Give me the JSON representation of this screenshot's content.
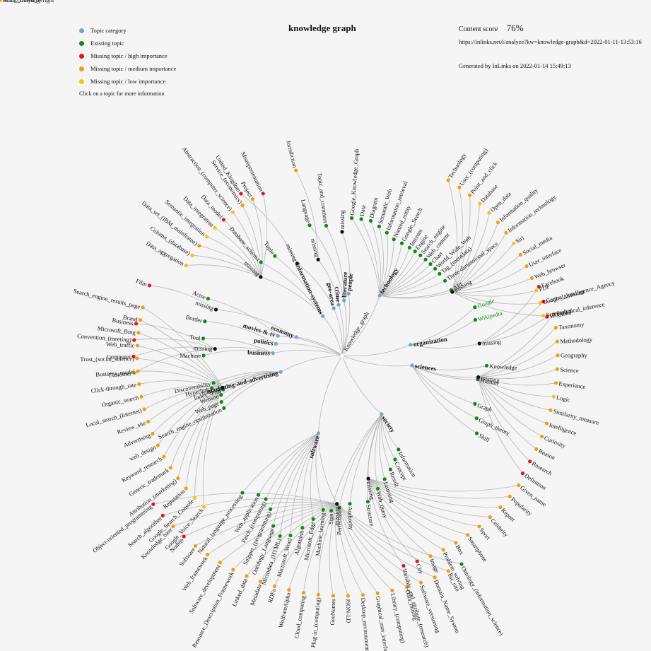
{
  "title": "knowledge graph",
  "score": {
    "label": "Content score",
    "value": "76%"
  },
  "url": "https://inlinks.net/i/analyze?kw=knowledge-graph&d=2022-01-11-13:53:16",
  "generated": "Generated by InLinks on 2022-01-14 15:49:13",
  "legend": {
    "items": [
      {
        "label": "Topic category",
        "color": "#6fa6cf"
      },
      {
        "label": "Existing topic",
        "color": "#118811"
      },
      {
        "label": "Missing topic / high importance",
        "color": "#e3161b"
      },
      {
        "label": "Missing topic / medium importance",
        "color": "#f29c11"
      },
      {
        "label": "Missing topic / low importance",
        "color": "#f6c21f"
      }
    ],
    "hint": "Click on a topic for more information"
  },
  "colors": {
    "cat": "#6fa6cf",
    "exist": "#118811",
    "high": "#e3161b",
    "med": "#f29c11",
    "low": "#f6c21f",
    "black": "#111111",
    "edge": "#b5b5b5"
  },
  "root": {
    "label": "Knowledge_graph"
  },
  "groups": [
    {
      "cat": "people",
      "sub": "missing",
      "sub_leaves": [
        [
          "Matt_Groening",
          "med"
        ],
        [
          "Frank_Lloyd_Wright",
          "med"
        ]
      ]
    },
    {
      "cat": "literature",
      "leaves": [
        [
          "Topic_and_comment",
          "exist"
        ],
        [
          "Language",
          "exist"
        ]
      ]
    },
    {
      "cat": "crime",
      "sub": "missing",
      "sub_leaves": [
        [
          "Jurisdiction",
          "med"
        ]
      ]
    },
    {
      "cat": "geo-area",
      "sub": "missing",
      "sub_leaves": [
        [
          "United_Kingdom",
          "high"
        ]
      ]
    },
    {
      "cat": "information-systems",
      "leaves": [
        [
          "Tuple",
          "exist"
        ],
        [
          "Database_schema",
          "exist"
        ]
      ],
      "sub": "missing",
      "sub_leaves": [
        [
          "Data_aggregation",
          "low"
        ],
        [
          "Column_(database)",
          "low"
        ],
        [
          "Data_set_(IBM_mainframe)",
          "med"
        ],
        [
          "Semantic_integration",
          "low"
        ],
        [
          "Data_integration",
          "low"
        ],
        [
          "Data_model",
          "high"
        ],
        [
          "Abstraction_(computer_science)",
          "low"
        ],
        [
          "Service_(economics)",
          "med"
        ],
        [
          "Project",
          "med"
        ],
        [
          "Misrepresentation",
          "high"
        ]
      ]
    },
    {
      "cat": "economy",
      "sub": "missing",
      "sub_leaves": [
        [
          "Film",
          "high"
        ]
      ]
    },
    {
      "cat": "movies-&-tv",
      "leaves": [
        [
          "Actor",
          "exist"
        ]
      ]
    },
    {
      "cat": "politics",
      "leaves": [
        [
          "Border",
          "exist"
        ]
      ]
    },
    {
      "cat": "business",
      "leaves": [
        [
          "Tool",
          "exist"
        ],
        [
          "Machine",
          "exist"
        ]
      ],
      "sub": "missing",
      "sub_leaves": [
        [
          "Customer",
          "med"
        ],
        [
          "Computer",
          "high"
        ],
        [
          "Convention_(meeting)",
          "high"
        ],
        [
          "Business",
          "high"
        ]
      ]
    },
    {
      "cat": "marketing-and-advertising",
      "leaves": [
        [
          "Discoverability",
          "exist"
        ],
        [
          "Hyperlink",
          "exist"
        ],
        [
          "Index_term",
          "exist"
        ],
        [
          "Website",
          "exist"
        ],
        [
          "Web_page",
          "exist"
        ],
        [
          "Search_engine_optimization",
          "exist"
        ]
      ],
      "sub": "missing",
      "sub_leaves": [
        [
          "Google_Voice_Search",
          "low"
        ],
        [
          "Google_Search_Console",
          "low"
        ],
        [
          "Reputation",
          "med"
        ],
        [
          "Attribution_(marketing)",
          "med"
        ],
        [
          "Generic_trademark",
          "med"
        ],
        [
          "Keyword_research",
          "med"
        ],
        [
          "web_design",
          "med"
        ],
        [
          "Advertising",
          "med"
        ],
        [
          "Review_site",
          "med"
        ],
        [
          "Local_search_(Internet)",
          "med"
        ],
        [
          "Organic_search",
          "med"
        ],
        [
          "Click-through_rate",
          "med"
        ],
        [
          "Business_model",
          "med"
        ],
        [
          "Trust_(social_science)",
          "med"
        ],
        [
          "Web_traffic",
          "med"
        ],
        [
          "Microsoft_Bing",
          "med"
        ],
        [
          "Brand",
          "med"
        ],
        [
          "Search_engine_results_page",
          "med"
        ]
      ]
    },
    {
      "cat": "software",
      "leaves": [
        [
          "Natural_language_processing",
          "exist"
        ],
        [
          "Web_application",
          "exist"
        ],
        [
          "Patch_(computing)",
          "exist"
        ],
        [
          "Snippet_(programming)",
          "exist"
        ],
        [
          "Ontology_Language",
          "exist"
        ],
        [
          "Microdata_(HTML)",
          "exist"
        ],
        [
          "Microsoft_Word",
          "exist"
        ],
        [
          "Algorithm",
          "exist"
        ],
        [
          "Microsoft_Edge",
          "exist"
        ],
        [
          "Machine_learning",
          "exist"
        ]
      ],
      "sub": "missing",
      "sub_leaves": [
        [
          "Ontology_(information_science)",
          "exist"
        ],
        [
          "Bit_rate",
          "med"
        ],
        [
          "Domain_Name_System",
          "med"
        ],
        [
          "Software_versioning",
          "med"
        ],
        [
          "Data_mining",
          "med"
        ],
        [
          "Library_(computing)",
          "med"
        ],
        [
          "Graphical_user_interface",
          "med"
        ],
        [
          "Desktop_environment",
          "med"
        ],
        [
          "JSON-LD",
          "med"
        ],
        [
          "GeoNames",
          "med"
        ],
        [
          "Plug-in_(computing)",
          "med"
        ],
        [
          "Cloud_computing",
          "med"
        ],
        [
          "WolframAlpha",
          "med"
        ],
        [
          "RDFa",
          "med"
        ],
        [
          "Metadata",
          "med"
        ],
        [
          "Linked_data",
          "med"
        ],
        [
          "Resource_Description_Framework",
          "med"
        ],
        [
          "Software_development",
          "med"
        ],
        [
          "Web_framework",
          "med"
        ],
        [
          "Software",
          "med"
        ],
        [
          "Nodejs",
          "high"
        ],
        [
          "Knowledge_base",
          "med"
        ],
        [
          "Search_algorithm",
          "high"
        ],
        [
          "Object-oriented_programming",
          "high"
        ]
      ]
    },
    {
      "cat": "society",
      "leaves": [
        [
          "Sign",
          "exist"
        ],
        [
          "Perfection",
          "exist"
        ],
        [
          "Authority",
          "exist"
        ],
        [
          "Structure",
          "exist"
        ],
        [
          "Web_query",
          "exist"
        ],
        [
          "Learning",
          "exist"
        ],
        [
          "Result",
          "exist"
        ],
        [
          "Concept",
          "exist"
        ],
        [
          "Information",
          "exist"
        ]
      ],
      "sub": "missing",
      "sub_leaves": [
        [
          "Given_name",
          "med"
        ],
        [
          "Popularity",
          "med"
        ],
        [
          "Report",
          "med"
        ],
        [
          "Celebrity",
          "med"
        ],
        [
          "Sport",
          "med"
        ],
        [
          "Smartphone",
          "med"
        ],
        [
          "Box",
          "med"
        ],
        [
          "Problem_solving",
          "med"
        ],
        [
          "Image",
          "med"
        ],
        [
          "City",
          "high"
        ],
        [
          "Variable_and_attribute_(research)",
          "high"
        ]
      ]
    },
    {
      "cat": "sciences",
      "leaves": [
        [
          "Skill",
          "exist"
        ],
        [
          "Graph_theory",
          "exist"
        ],
        [
          "Graph",
          "exist"
        ],
        [
          "Human",
          "exist"
        ],
        [
          "Knowledge",
          "exist"
        ]
      ],
      "sub": "missing",
      "sub_leaves": [
        [
          "Statistical_inference",
          "med"
        ],
        [
          "Taxonomy",
          "med"
        ],
        [
          "Methodology",
          "med"
        ],
        [
          "Geography",
          "med"
        ],
        [
          "Science",
          "med"
        ],
        [
          "Experience",
          "med"
        ],
        [
          "Logic",
          "low"
        ],
        [
          "Similarity_measure",
          "med"
        ],
        [
          "Intelligence",
          "med"
        ],
        [
          "Curiosity",
          "med"
        ],
        [
          "Reason",
          "med"
        ],
        [
          "Research",
          "high"
        ],
        [
          "Definition",
          "high"
        ]
      ]
    },
    {
      "cat": "organization",
      "leaves": [
        [
          "Wikipedia",
          "exist"
        ],
        [
          "Google",
          "exist"
        ]
      ],
      "sub": "missing",
      "sub_leaves": [
        [
          "Facebook",
          "high"
        ],
        [
          "Central_Intelligence_Agency",
          "high"
        ],
        [
          "Wikidata",
          "high"
        ]
      ]
    },
    {
      "cat": "technology",
      "leaves": [
        [
          "Google_Knowledge_Graph",
          "exist"
        ],
        [
          "Data",
          "exist"
        ],
        [
          "Diagram",
          "exist"
        ],
        [
          "Semantic_Web",
          "exist"
        ],
        [
          "Information_retrieval",
          "exist"
        ],
        [
          "Named_entity",
          "exist"
        ],
        [
          "Google_Search",
          "exist"
        ],
        [
          "Internet",
          "exist"
        ],
        [
          "Engine",
          "exist"
        ],
        [
          "Search_engine",
          "exist"
        ],
        [
          "Web_content",
          "exist"
        ],
        [
          "Chart",
          "exist"
        ],
        [
          "World_Wide_Web",
          "exist"
        ],
        [
          "Tag_(metadata)",
          "exist"
        ],
        [
          "Three-dimensional_space",
          "exist"
        ],
        [
          "API",
          "exist"
        ]
      ],
      "sub": "missing",
      "sub_leaves": [
        [
          "Technology",
          "med"
        ],
        [
          "User_(computing)",
          "med"
        ],
        [
          "Point_and_click",
          "med"
        ],
        [
          "Database",
          "low"
        ],
        [
          "Open_data",
          "low"
        ],
        [
          "Information_quality",
          "med"
        ],
        [
          "Information_technology",
          "med"
        ],
        [
          "Siri",
          "low"
        ],
        [
          "Social_media",
          "med"
        ],
        [
          "User_interface",
          "med"
        ],
        [
          "Web_browser",
          "med"
        ],
        [
          "PDF",
          "low"
        ],
        [
          "Google_Assistant",
          "low"
        ],
        [
          "Screenshot",
          "low"
        ]
      ]
    }
  ]
}
